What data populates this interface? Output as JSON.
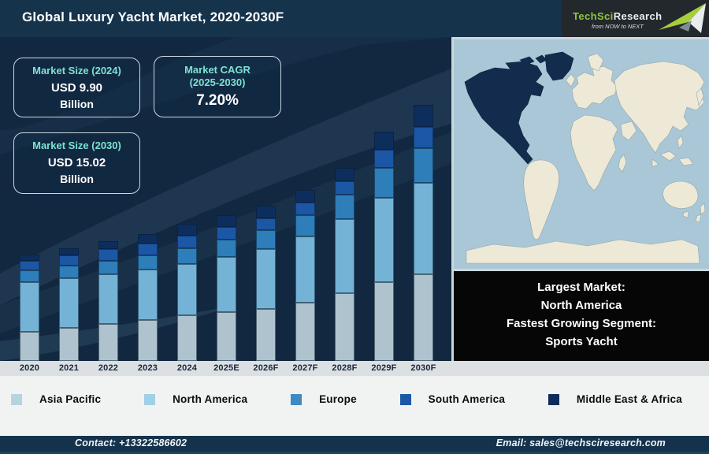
{
  "header": {
    "title": "Global Luxury Yacht Market, 2020-2030F",
    "logo": {
      "brand": "TechSci",
      "brand2": "Research",
      "tagline": "from NOW to NEXT"
    }
  },
  "cards": {
    "size2024": {
      "heading": "Market Size (2024)",
      "value": "USD 9.90",
      "unit": "Billion"
    },
    "cagr": {
      "heading_line1": "Market CAGR",
      "heading_line2": "(2025-2030)",
      "value": "7.20%"
    },
    "size2030": {
      "heading": "Market Size (2030)",
      "value": "USD 15.02",
      "unit": "Billion"
    }
  },
  "chart_data": {
    "type": "stacked-bar",
    "title": "Global Luxury Yacht Market, 2020-2030F",
    "categories": [
      "2020",
      "2021",
      "2022",
      "2023",
      "2024",
      "2025E",
      "2026F",
      "2027F",
      "2028F",
      "2029F",
      "2030F"
    ],
    "series": [
      {
        "name": "Asia Pacific",
        "color": "#aec3cd",
        "legend_color": "#b6d3e0",
        "values": [
          37,
          42,
          47,
          52,
          58,
          62,
          66,
          74,
          86,
          100,
          110
        ]
      },
      {
        "name": "North America",
        "color": "#74b3d6",
        "legend_color": "#9fd1e6",
        "values": [
          63,
          63,
          63,
          64,
          65,
          70,
          76,
          84,
          94,
          107,
          116
        ]
      },
      {
        "name": "Europe",
        "color": "#2e7eb9",
        "legend_color": "#3f8ac2",
        "values": [
          15,
          16,
          17,
          18,
          20,
          22,
          24,
          27,
          31,
          38,
          44
        ]
      },
      {
        "name": "South America",
        "color": "#1b57a5",
        "legend_color": "#1c58a6",
        "values": [
          12,
          13,
          15,
          15,
          16,
          16,
          15,
          16,
          17,
          23,
          27
        ]
      },
      {
        "name": "Middle East & Africa",
        "color": "#0d2d5c",
        "legend_color": "#0d2c5a",
        "values": [
          8,
          9,
          10,
          12,
          15,
          15,
          16,
          16,
          17,
          23,
          28
        ]
      }
    ],
    "unit_note": "No y-axis shown; segment values are relative heights estimated from the image. Anchors shown on image: 2024 total = USD 9.90 Billion, 2030 total = USD 15.02 Billion, CAGR 2025-2030 = 7.20%.",
    "legend_position": "bottom",
    "grid": false
  },
  "callout": {
    "line1": "Largest Market:",
    "line2": "North America",
    "line3": "Fastest Growing Segment:",
    "line4": "Sports Yacht"
  },
  "map": {
    "highlight_region": "North America",
    "ocean_color": "#a9c7d6",
    "land_color": "#ede9d6",
    "highlight_color": "#132c4d"
  },
  "footer": {
    "contact": "Contact: +13322586602",
    "email": "Email: sales@techsciresearch.com"
  },
  "colors": {
    "header_bg": "#16334c",
    "chart_bg": "#122840",
    "accent_teal": "#7de3d2",
    "axis_strip_bg": "#dce0e3",
    "footer_bg": "#14324b",
    "logo_green": "#8dc63f",
    "callout_bg": "#060606"
  }
}
